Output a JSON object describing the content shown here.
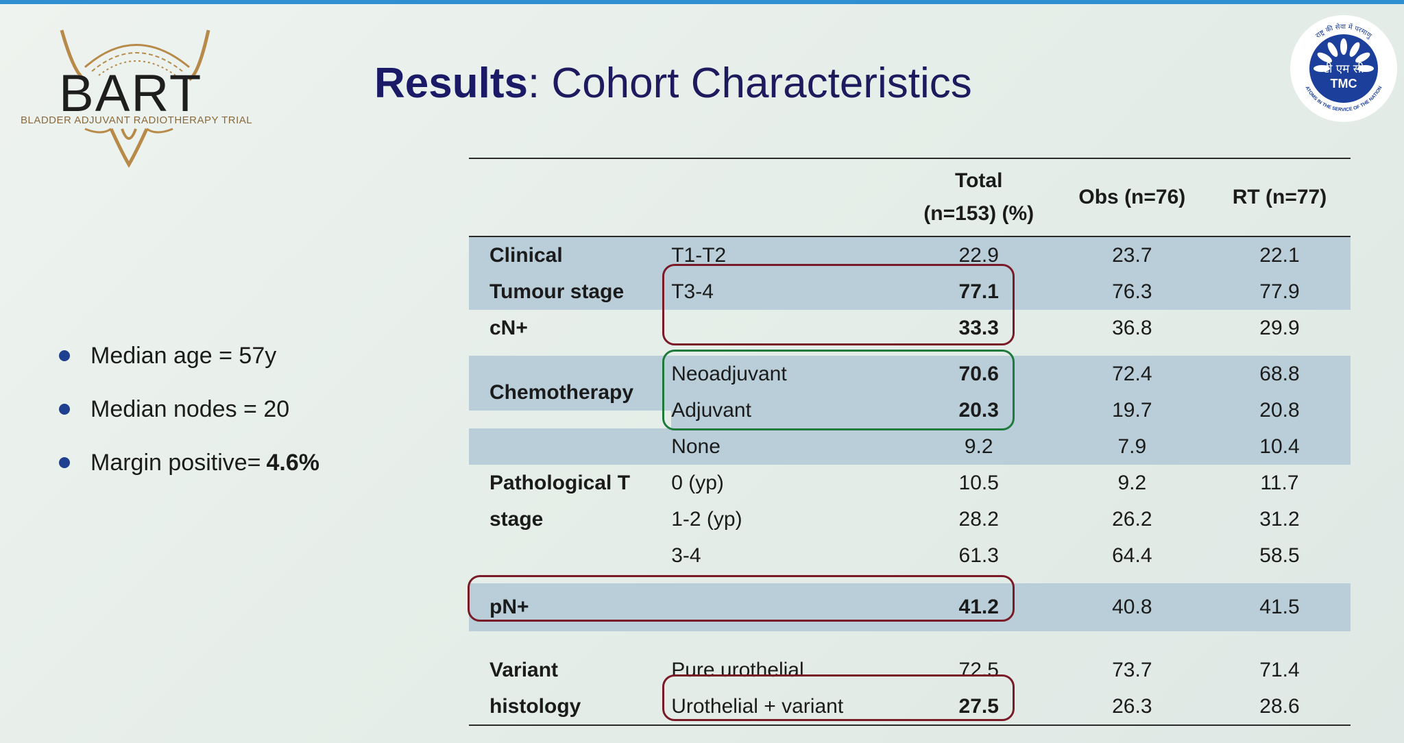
{
  "logo": {
    "name": "BART",
    "subtitle": "BLADDER ADJUVANT RADIOTHERAPY TRIAL",
    "tmc_top_text": "राष्ट्र की सेवा में परमाणु",
    "tmc_center_text": "टी एम सी",
    "tmc_label": "TMC",
    "tmc_bottom_text": "ATOMS IN THE SERVICE OF THE NATION"
  },
  "title": {
    "bold": "Results",
    "rest": ": Cohort Characteristics"
  },
  "bullets": [
    {
      "text": "Median age = 57y",
      "bold": ""
    },
    {
      "text": "Median nodes = 20",
      "bold": ""
    },
    {
      "text": "Margin positive=",
      "bold": "4.6%"
    }
  ],
  "table": {
    "headers": {
      "total_line1": "Total",
      "total_line2": "(n=153) (%)",
      "obs": "Obs (n=76)",
      "rt": "RT (n=77)"
    },
    "rows": [
      {
        "group": "Clinical",
        "sub": "T1-T2",
        "total": "22.9",
        "obs": "23.7",
        "rt": "22.1"
      },
      {
        "group": "Tumour stage",
        "sub": "T3-4",
        "total": "77.1",
        "obs": "76.3",
        "rt": "77.9"
      },
      {
        "group": "cN+",
        "sub": "",
        "total": "33.3",
        "obs": "36.8",
        "rt": "29.9"
      },
      {
        "group": "",
        "sub": "Neoadjuvant",
        "total": "70.6",
        "obs": "72.4",
        "rt": "68.8"
      },
      {
        "group": "Chemotherapy",
        "sub": "Adjuvant",
        "total": "20.3",
        "obs": "19.7",
        "rt": "20.8"
      },
      {
        "group": "",
        "sub": "None",
        "total": "9.2",
        "obs": "7.9",
        "rt": "10.4"
      },
      {
        "group": "Pathological T",
        "sub": "0 (yp)",
        "total": "10.5",
        "obs": "9.2",
        "rt": "11.7"
      },
      {
        "group": "stage",
        "sub": "1-2 (yp)",
        "total": "28.2",
        "obs": "26.2",
        "rt": "31.2"
      },
      {
        "group": "",
        "sub": "3-4",
        "total": "61.3",
        "obs": "64.4",
        "rt": "58.5"
      },
      {
        "group": "pN+",
        "sub": "",
        "total": "41.2",
        "obs": "40.8",
        "rt": "41.5"
      },
      {
        "group": "Variant",
        "sub": "Pure urothelial",
        "total": "72.5",
        "obs": "73.7",
        "rt": "71.4"
      },
      {
        "group": "histology",
        "sub": "Urothelial + variant",
        "total": "27.5",
        "obs": "26.3",
        "rt": "28.6"
      }
    ]
  },
  "colors": {
    "accent": "#1d1b5e",
    "shade": "#b9ced8",
    "box_red": "#7a1a26",
    "box_green": "#1e7a3a"
  }
}
